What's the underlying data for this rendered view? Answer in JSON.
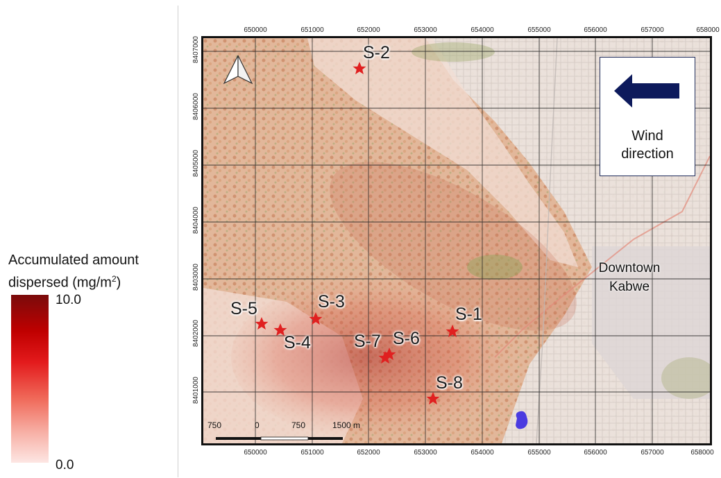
{
  "legend": {
    "title_line1": "Accumulated amount",
    "title_line2": "dispersed (mg/m",
    "title_sup": "2",
    "title_close": ")",
    "max_label": "10.0",
    "min_label": "0.0"
  },
  "x_ticks_top": [
    "650000",
    "651000",
    "652000",
    "653000",
    "654000",
    "655000",
    "656000",
    "657000",
    "658000"
  ],
  "x_ticks_bottom": [
    "650000",
    "651000",
    "652000",
    "653000",
    "654000",
    "655000",
    "656000",
    "657000",
    "658000"
  ],
  "y_ticks": [
    "8407000",
    "8406000",
    "8405000",
    "8404000",
    "8403000",
    "8402000",
    "8401000"
  ],
  "wind": {
    "line1": "Wind",
    "line2": "direction",
    "arrow_color": "#0d1a5c"
  },
  "downtown": {
    "line1": "Downtown",
    "line2": "Kabwe"
  },
  "sites": [
    {
      "id": "s1",
      "label": "S-1"
    },
    {
      "id": "s2",
      "label": "S-2"
    },
    {
      "id": "s3",
      "label": "S-3"
    },
    {
      "id": "s4",
      "label": "S-4"
    },
    {
      "id": "s5",
      "label": "S-5"
    },
    {
      "id": "s6",
      "label": "S-6"
    },
    {
      "id": "s7",
      "label": "S-7"
    },
    {
      "id": "s8",
      "label": "S-8"
    }
  ],
  "scale_bar": {
    "labels": [
      "750",
      "0",
      "750",
      "1500 m"
    ]
  },
  "colors": {
    "star": "#e02020",
    "blob": "#4a3be0",
    "grid": "#222222"
  }
}
